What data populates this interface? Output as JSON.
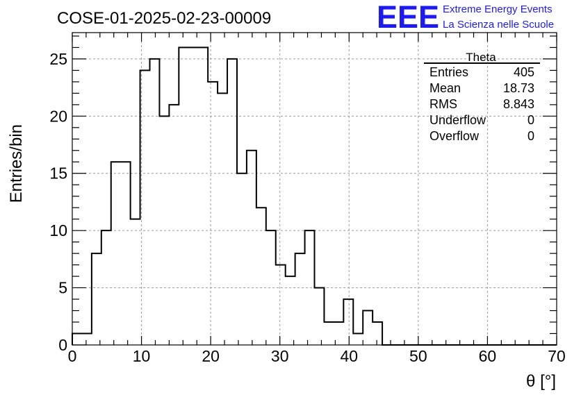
{
  "chart_data": {
    "type": "histogram",
    "title": "COSE-01-2025-02-23-00009",
    "xlabel": "θ [°]",
    "ylabel": "Entries/bin",
    "xlim": [
      0,
      70
    ],
    "ylim": [
      0,
      27.3
    ],
    "grid": true,
    "bin_width": 1.4,
    "bin_edges_start": 0,
    "values": [
      1,
      1,
      8,
      10,
      16,
      16,
      11,
      24,
      25,
      20,
      21,
      26,
      26,
      26,
      23,
      22,
      25,
      15,
      17,
      12,
      10,
      7,
      6,
      8,
      10,
      5,
      2,
      2,
      4,
      1,
      3,
      2,
      0,
      0,
      0,
      0,
      0,
      0,
      0,
      0,
      0,
      0,
      0,
      0,
      0,
      0,
      0,
      0,
      0,
      0
    ],
    "xticks": [
      0,
      10,
      20,
      30,
      40,
      50,
      60,
      70
    ],
    "xtick_labels": [
      "0",
      "10",
      "20",
      "30",
      "40",
      "50",
      "60",
      "70"
    ],
    "yticks": [
      0,
      5,
      10,
      15,
      20,
      25
    ],
    "ytick_labels": [
      "0",
      "5",
      "10",
      "15",
      "20",
      "25"
    ],
    "stats": {
      "name": "Theta",
      "rows": [
        {
          "label": "Entries",
          "value": "405"
        },
        {
          "label": "Mean",
          "value": "18.73"
        },
        {
          "label": "RMS",
          "value": "8.843"
        },
        {
          "label": "Underflow",
          "value": "0"
        },
        {
          "label": "Overflow",
          "value": "0"
        }
      ]
    }
  },
  "logo": {
    "mark": "EEE",
    "line1": "Extreme Energy Events",
    "line2": "La Scienza nelle Scuole",
    "color": "#1c1cf0"
  }
}
